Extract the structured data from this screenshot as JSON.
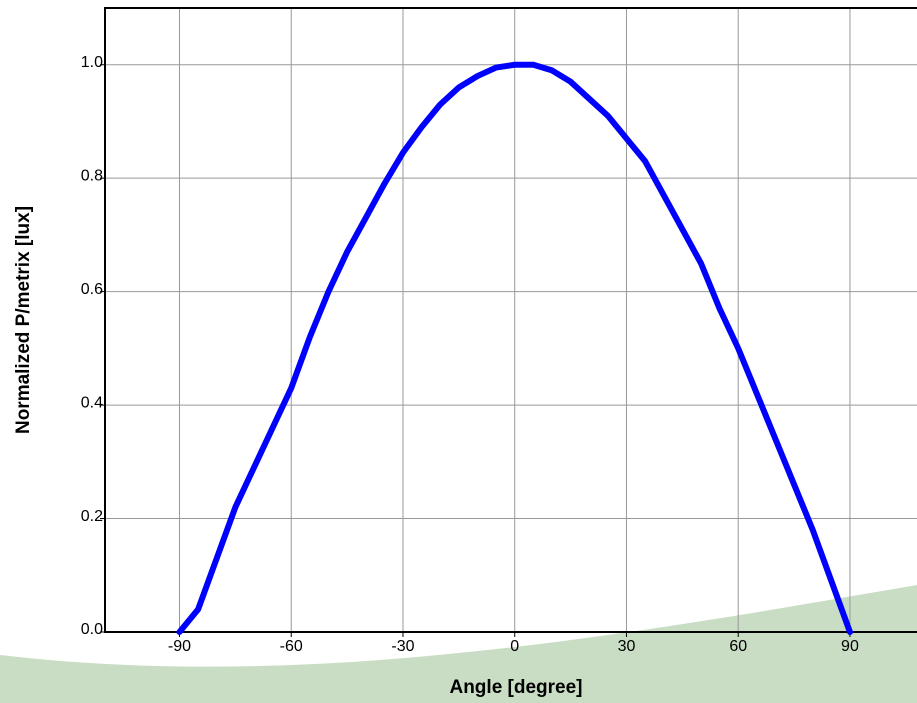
{
  "chart_data": {
    "type": "line",
    "x_label": "Angle [degree]",
    "y_label": "Normalized P/metrix [lux]",
    "x": [
      -90,
      -85,
      -80,
      -75,
      -70,
      -65,
      -60,
      -55,
      -50,
      -45,
      -40,
      -35,
      -30,
      -25,
      -20,
      -15,
      -10,
      -5,
      0,
      5,
      10,
      15,
      20,
      25,
      30,
      35,
      40,
      45,
      50,
      55,
      60,
      65,
      70,
      75,
      80,
      85,
      90
    ],
    "series": [
      {
        "color": "#0000ff",
        "values": [
          0.0,
          0.04,
          0.13,
          0.22,
          0.29,
          0.36,
          0.43,
          0.52,
          0.6,
          0.67,
          0.73,
          0.79,
          0.845,
          0.89,
          0.93,
          0.96,
          0.98,
          0.995,
          1.0,
          1.0,
          0.99,
          0.97,
          0.94,
          0.91,
          0.87,
          0.83,
          0.77,
          0.71,
          0.65,
          0.57,
          0.5,
          0.42,
          0.34,
          0.26,
          0.18,
          0.09,
          0.0
        ]
      }
    ],
    "xlim": [
      -110,
      108
    ],
    "ylim": [
      0,
      1.1
    ],
    "xticks": [
      -90,
      -60,
      -30,
      0,
      30,
      60,
      90
    ],
    "yticks": [
      {
        "value": 0,
        "label": "0.0"
      },
      0.2,
      0.4,
      0.6,
      0.8,
      {
        "value": 1,
        "label": "1.0"
      }
    ],
    "grid": true
  }
}
